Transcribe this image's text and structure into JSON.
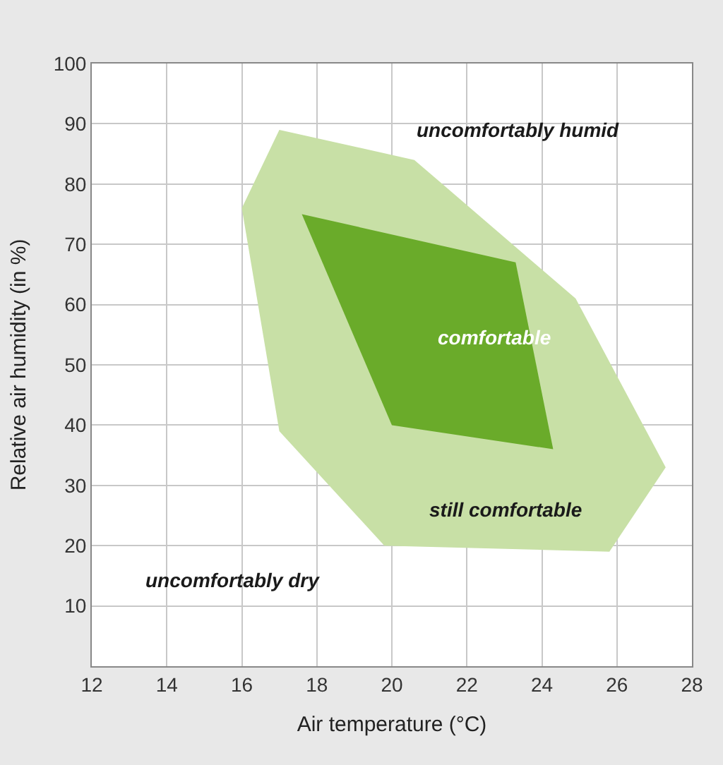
{
  "chart_data": {
    "type": "area",
    "xlabel": "Air temperature (°C)",
    "ylabel": "Relative air humidity (in %)",
    "xlim": [
      12,
      28
    ],
    "xticks": [
      12,
      14,
      16,
      18,
      20,
      22,
      24,
      26,
      28
    ],
    "ylim": [
      0,
      100
    ],
    "yticks": [
      10,
      20,
      30,
      40,
      50,
      60,
      70,
      80,
      90,
      100
    ],
    "grid": true,
    "marker": "none",
    "series": [
      {
        "color": "#c8e0a6",
        "x": [
          17.0,
          20.6,
          24.9,
          27.3,
          25.8,
          19.8,
          17.0,
          16.0
        ],
        "values": [
          89,
          84,
          61,
          33,
          19,
          20,
          39,
          76
        ]
      },
      {
        "color": "#6aab2a",
        "x": [
          17.6,
          23.3,
          24.3,
          20.0
        ],
        "values": [
          75,
          67,
          36,
          40
        ]
      }
    ],
    "annotations": [
      "uncomfortably humid",
      "comfortable",
      "still comfortable",
      "uncomfortably dry"
    ]
  }
}
